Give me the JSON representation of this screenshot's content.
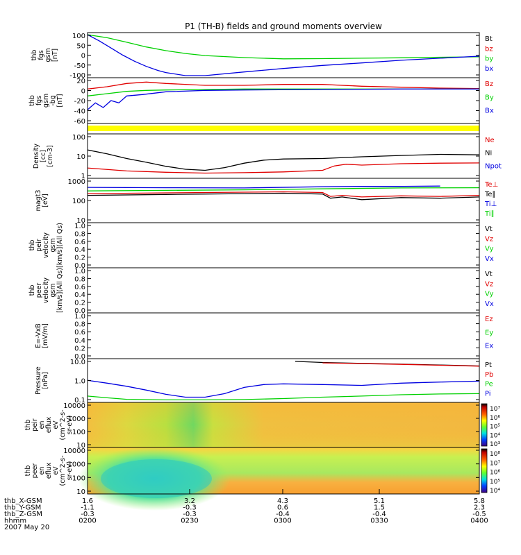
{
  "title": "P1 (TH-B) fields and ground moments overview",
  "colors": {
    "black": "#000000",
    "red": "#e00000",
    "green": "#00d000",
    "blue": "#0000e0",
    "yellow": "#ffff00",
    "orange": "#f3b840",
    "teal": "#30c8c0"
  },
  "chart_data": [
    {
      "panel": "thb_fgs_gsm",
      "type": "line",
      "ylabel": [
        "thb",
        "fgs",
        "gsm",
        "[nT]"
      ],
      "ylim": [
        -100,
        100
      ],
      "ytick_labels": [
        "100",
        "50",
        "0",
        "-50",
        "-100"
      ],
      "legend": [
        {
          "name": "Bt",
          "color": "black"
        },
        {
          "name": "bz",
          "color": "red"
        },
        {
          "name": "by",
          "color": "green"
        },
        {
          "name": "bx",
          "color": "blue"
        }
      ],
      "series": [
        {
          "name": "by",
          "color": "green",
          "x": [
            0,
            0.05,
            0.1,
            0.15,
            0.2,
            0.25,
            0.3,
            0.4,
            0.5,
            0.6,
            0.7,
            0.8,
            0.9,
            1.0
          ],
          "y": [
            100,
            85,
            63,
            40,
            22,
            8,
            -2,
            -12,
            -18,
            -17,
            -15,
            -13,
            -10,
            -8
          ]
        },
        {
          "name": "bx",
          "color": "blue",
          "x": [
            0,
            0.03,
            0.06,
            0.09,
            0.12,
            0.15,
            0.18,
            0.2,
            0.25,
            0.3,
            0.4,
            0.5,
            0.6,
            0.7,
            0.8,
            0.9,
            1.0
          ],
          "y": [
            100,
            70,
            35,
            0,
            -30,
            -55,
            -75,
            -85,
            -100,
            -100,
            -82,
            -65,
            -50,
            -38,
            -25,
            -15,
            -5
          ]
        }
      ]
    },
    {
      "panel": "thb_fgs_gsm_dsl",
      "type": "line",
      "ylabel": [
        "thb",
        "fgs",
        "gsm",
        "-bg",
        "[nT]"
      ],
      "ylim": [
        -70,
        20
      ],
      "ytick_labels": [
        "20",
        "0",
        "-20",
        "-40",
        "-60"
      ],
      "legend": [
        {
          "name": "Bz",
          "color": "red"
        },
        {
          "name": "By",
          "color": "green"
        },
        {
          "name": "Bx",
          "color": "blue"
        }
      ],
      "series": [
        {
          "name": "Bz",
          "color": "red",
          "x": [
            0,
            0.05,
            0.1,
            0.15,
            0.2,
            0.3,
            0.4,
            0.5,
            0.6,
            0.7,
            0.8,
            0.9,
            1.0
          ],
          "y": [
            0,
            5,
            12,
            15,
            12,
            8,
            8,
            10,
            10,
            6,
            4,
            2,
            1
          ]
        },
        {
          "name": "By",
          "color": "green",
          "x": [
            0,
            0.05,
            0.1,
            0.15,
            0.2,
            0.3,
            0.4,
            0.6,
            0.8,
            1.0
          ],
          "y": [
            -15,
            -10,
            -5,
            -3,
            -2,
            -1,
            0,
            0,
            0,
            0
          ]
        },
        {
          "name": "Bx",
          "color": "blue",
          "x": [
            0,
            0.02,
            0.04,
            0.06,
            0.08,
            0.1,
            0.14,
            0.2,
            0.3,
            0.4,
            0.6,
            0.8,
            1.0
          ],
          "y": [
            -45,
            -30,
            -40,
            -25,
            -30,
            -15,
            -12,
            -6,
            -3,
            -2,
            -1,
            0,
            0
          ]
        }
      ]
    },
    {
      "panel": "thb_density",
      "type": "line",
      "yscale": "log",
      "ylabel": [
        "Density",
        "[cc]",
        "[cm-3]"
      ],
      "ylim": [
        0.5,
        200
      ],
      "ytick_labels": [
        "100",
        "10",
        "1"
      ],
      "legend": [
        {
          "name": "Ne",
          "color": "red"
        },
        {
          "name": "Ni",
          "color": "black"
        },
        {
          "name": "Npot",
          "color": "blue"
        }
      ],
      "series": [
        {
          "name": "Ni",
          "color": "black",
          "x": [
            0,
            0.05,
            0.1,
            0.15,
            0.2,
            0.25,
            0.3,
            0.35,
            0.4,
            0.45,
            0.5,
            0.6,
            0.7,
            0.8,
            0.9,
            1.0
          ],
          "y": [
            25,
            14,
            7,
            4,
            2.2,
            1.4,
            1.2,
            1.8,
            3.5,
            5.5,
            6.5,
            7,
            9,
            11,
            13,
            12
          ]
        },
        {
          "name": "Ne",
          "color": "red",
          "x": [
            0,
            0.1,
            0.2,
            0.3,
            0.4,
            0.5,
            0.6,
            0.63,
            0.66,
            0.7,
            0.8,
            0.9,
            1.0
          ],
          "y": [
            1.7,
            1.1,
            0.9,
            0.8,
            0.85,
            0.95,
            1.2,
            2.3,
            3.0,
            2.6,
            3.2,
            3.5,
            3.6
          ]
        }
      ]
    },
    {
      "panel": "thb_temperature",
      "type": "line",
      "yscale": "log",
      "ylabel": [
        "magt3",
        "[eV]"
      ],
      "ylim": [
        10,
        1000
      ],
      "ytick_labels": [
        "1000",
        "100",
        "10"
      ],
      "legend": [
        {
          "name": "Te⊥",
          "color": "red"
        },
        {
          "name": "Te∥",
          "color": "black"
        },
        {
          "name": "Ti⊥",
          "color": "blue"
        },
        {
          "name": "Ti∥",
          "color": "green"
        }
      ],
      "series": [
        {
          "name": "Ti⊥",
          "color": "blue",
          "x": [
            0,
            0.2,
            0.4,
            0.6,
            0.7,
            0.8,
            0.9
          ],
          "y": [
            450,
            430,
            420,
            480,
            500,
            500,
            520
          ]
        },
        {
          "name": "Ti∥",
          "color": "green",
          "x": [
            0,
            0.2,
            0.4,
            0.6,
            0.8,
            1.0
          ],
          "y": [
            300,
            320,
            340,
            380,
            420,
            430
          ]
        },
        {
          "name": "Te∥",
          "color": "black",
          "x": [
            0,
            0.2,
            0.3,
            0.4,
            0.5,
            0.6,
            0.62,
            0.65,
            0.7,
            0.8,
            0.9,
            1.0
          ],
          "y": [
            180,
            200,
            210,
            220,
            230,
            210,
            130,
            150,
            110,
            140,
            130,
            150
          ]
        },
        {
          "name": "Te⊥",
          "color": "red",
          "x": [
            0,
            0.2,
            0.3,
            0.4,
            0.5,
            0.6,
            0.62,
            0.65,
            0.7,
            0.8,
            0.9,
            1.0
          ],
          "y": [
            220,
            240,
            250,
            260,
            270,
            250,
            160,
            180,
            150,
            170,
            160,
            180
          ]
        }
      ]
    },
    {
      "panel": "thb_peir_velocity",
      "type": "line",
      "ylabel": [
        "thb",
        "peir",
        "velocity",
        "gsm",
        "[km/s](All Qs)"
      ],
      "ylim": [
        0,
        1
      ],
      "ytick_labels": [
        "1.0",
        "0.8",
        "0.6",
        "0.4",
        "0.2",
        "0.0"
      ],
      "legend": [
        {
          "name": "Vt",
          "color": "black"
        },
        {
          "name": "Vz",
          "color": "red"
        },
        {
          "name": "Vy",
          "color": "green"
        },
        {
          "name": "Vx",
          "color": "blue"
        }
      ],
      "series": []
    },
    {
      "panel": "thb_peer_velocity",
      "type": "line",
      "ylabel": [
        "thb",
        "peer",
        "velocity",
        "gsm",
        "[km/s](All Qs)"
      ],
      "ylim": [
        0,
        1
      ],
      "ytick_labels": [
        "1.0",
        "0.8",
        "0.6",
        "0.4",
        "0.2",
        "0.0"
      ],
      "legend": [
        {
          "name": "Vt",
          "color": "black"
        },
        {
          "name": "Vz",
          "color": "red"
        },
        {
          "name": "Vy",
          "color": "green"
        },
        {
          "name": "Vx",
          "color": "blue"
        }
      ],
      "series": []
    },
    {
      "panel": "thb_efield",
      "type": "line",
      "ylabel": [
        "E=-VxB",
        "[mV/m]"
      ],
      "ylim": [
        0,
        1
      ],
      "ytick_labels": [
        "1.0",
        "0.8",
        "0.6",
        "0.4",
        "0.2",
        "0.0"
      ],
      "legend": [
        {
          "name": "Ez",
          "color": "red"
        },
        {
          "name": "Ey",
          "color": "green"
        },
        {
          "name": "Ex",
          "color": "blue"
        }
      ],
      "series": []
    },
    {
      "panel": "thb_pressure",
      "type": "line",
      "yscale": "log",
      "ylabel": [
        "Pressure",
        "[nPa]"
      ],
      "ylim": [
        0.03,
        20
      ],
      "ytick_labels": [
        "10.0",
        "1.0",
        "0.1"
      ],
      "legend": [
        {
          "name": "Pt",
          "color": "black"
        },
        {
          "name": "Pb",
          "color": "red"
        },
        {
          "name": "Pe",
          "color": "green"
        },
        {
          "name": "Pi",
          "color": "blue"
        }
      ],
      "series": [
        {
          "name": "Pt",
          "color": "black",
          "x": [
            0.53,
            0.6,
            0.7,
            0.8,
            0.9,
            1.0
          ],
          "y": [
            18,
            15,
            13,
            11.5,
            10,
            8.5
          ]
        },
        {
          "name": "Pb",
          "color": "red",
          "x": [
            0.6,
            0.7,
            0.8,
            0.9,
            1.0
          ],
          "y": [
            14,
            12.5,
            11,
            9.5,
            8.2
          ]
        },
        {
          "name": "Pi",
          "color": "blue",
          "x": [
            0,
            0.05,
            0.1,
            0.15,
            0.2,
            0.25,
            0.3,
            0.35,
            0.4,
            0.45,
            0.5,
            0.6,
            0.7,
            0.8,
            0.9,
            1.0
          ],
          "y": [
            0.8,
            0.5,
            0.3,
            0.16,
            0.08,
            0.05,
            0.05,
            0.09,
            0.25,
            0.4,
            0.45,
            0.4,
            0.35,
            0.5,
            0.6,
            0.7
          ]
        },
        {
          "name": "Pe",
          "color": "green",
          "x": [
            0,
            0.05,
            0.1,
            0.2,
            0.3,
            0.4,
            0.5,
            0.6,
            0.7,
            0.8,
            0.9,
            1.0
          ],
          "y": [
            0.06,
            0.045,
            0.035,
            0.032,
            0.032,
            0.034,
            0.04,
            0.05,
            0.06,
            0.075,
            0.085,
            0.09
          ]
        }
      ]
    },
    {
      "panel": "thb_peir_en_eflux",
      "type": "heatmap",
      "ylabel": [
        "thb",
        "peir",
        "en",
        "eflux",
        "eV",
        "(cm^2-s-",
        "sr-eV)"
      ],
      "ytick_labels": [
        "10000",
        "1000",
        "100",
        "10"
      ],
      "colorbar_labels": [
        "10⁷",
        "10⁶",
        "10⁵",
        "10⁴",
        "10³"
      ]
    },
    {
      "panel": "thb_peer_en_eflux",
      "type": "heatmap",
      "ylabel": [
        "thb",
        "peer",
        "en",
        "eflux",
        "eV",
        "(cm^2-s-",
        "sr-eV)"
      ],
      "ytick_labels": [
        "10000",
        "1000",
        "100",
        "10"
      ],
      "colorbar_labels": [
        "10⁸",
        "10⁷",
        "10⁶",
        "10⁵",
        "10⁴"
      ]
    }
  ],
  "x_axis": {
    "row_labels": [
      "thb_X-GSM",
      "thb_Y-GSM",
      "thb_Z-GSM",
      "hhmm",
      "2007 May 20"
    ],
    "ticks": [
      {
        "x": "1.6",
        "y": "-1.1",
        "z": "-0.3",
        "hhmm": "0200"
      },
      {
        "x": "3.2",
        "y": "-0.3",
        "z": "-0.3",
        "hhmm": "0230"
      },
      {
        "x": "4.3",
        "y": "0.6",
        "z": "-0.4",
        "hhmm": "0300"
      },
      {
        "x": "5.1",
        "y": "1.5",
        "z": "-0.4",
        "hhmm": "0330"
      },
      {
        "x": "5.8",
        "y": "2.3",
        "z": "-0.5",
        "hhmm": "0400"
      }
    ]
  }
}
